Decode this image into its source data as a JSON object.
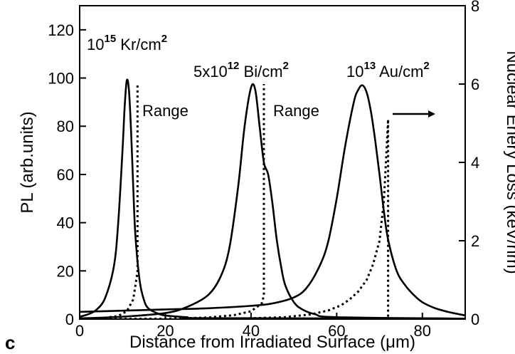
{
  "chart_data": {
    "type": "line",
    "panel_label": "c",
    "xlabel": "Distance from Irradiated Surface (μm)",
    "ylabel_left": "PL (arb.units)",
    "ylabel_right": "Nuclear Enery Loss (keV/nm)",
    "xlim": [
      0,
      90
    ],
    "ylim_left": [
      0,
      130
    ],
    "ylim_right": [
      0,
      8
    ],
    "x_ticks": [
      0,
      20,
      40,
      60,
      80
    ],
    "y_ticks_left": [
      0,
      20,
      40,
      60,
      80,
      100,
      120
    ],
    "y_ticks_right": [
      0,
      2,
      4,
      6,
      8
    ],
    "annotations": {
      "kr": {
        "base": "10",
        "exp": "15",
        "rest": " Kr/cm",
        "sup2": "2"
      },
      "bi": {
        "base": "5x10",
        "exp": "12",
        "rest": " Bi/cm",
        "sup2": "2"
      },
      "au": {
        "base": "10",
        "exp": "13",
        "rest": " Au/cm",
        "sup2": "2"
      },
      "range1": "Range",
      "range2": "Range"
    },
    "series": [
      {
        "style": "solid",
        "axis": "left",
        "x": [
          0,
          2,
          4,
          6,
          8,
          9,
          10,
          10.5,
          11,
          11.5,
          12,
          12.5,
          13,
          14,
          15,
          16,
          18,
          20,
          25,
          30,
          90
        ],
        "y": [
          1,
          2,
          4,
          9,
          22,
          40,
          70,
          88,
          99,
          95,
          78,
          55,
          35,
          16,
          8,
          4.5,
          2.5,
          1.5,
          0.8,
          0.4,
          0.2
        ]
      },
      {
        "style": "solid",
        "axis": "left",
        "x": [
          0,
          10,
          20,
          25,
          30,
          33,
          35,
          37,
          38.5,
          40,
          41,
          42,
          43,
          44,
          45,
          46,
          47,
          48,
          50,
          52,
          55,
          60,
          90
        ],
        "y": [
          0.3,
          1,
          2.5,
          5,
          10,
          18,
          30,
          55,
          80,
          96,
          95,
          80,
          65,
          60,
          48,
          33,
          22,
          14,
          7,
          4,
          2,
          0.8,
          0.2
        ]
      },
      {
        "style": "solid",
        "axis": "left",
        "x": [
          0,
          10,
          20,
          30,
          40,
          45,
          50,
          53,
          56,
          58,
          60,
          62,
          64,
          65,
          66,
          67,
          68,
          69,
          70,
          71,
          72,
          74,
          76,
          78,
          80,
          83,
          86,
          90
        ],
        "y": [
          3,
          3.5,
          4,
          4.5,
          5.5,
          6.5,
          9,
          13,
          22,
          32,
          50,
          72,
          90,
          95,
          97,
          94,
          86,
          74,
          60,
          45,
          33,
          20,
          14,
          10,
          7,
          4.5,
          3,
          1.5
        ]
      },
      {
        "style": "dotted",
        "axis": "right",
        "x": [
          0,
          5,
          9,
          11,
          12.5,
          13.5,
          13.5
        ],
        "y": [
          0,
          0.02,
          0.08,
          0.2,
          0.5,
          1.2,
          6.0
        ]
      },
      {
        "style": "dotted",
        "axis": "right",
        "x": [
          0,
          20,
          30,
          36,
          40,
          42.5,
          43,
          43
        ],
        "y": [
          0,
          0.01,
          0.04,
          0.1,
          0.2,
          0.4,
          0.6,
          6.0
        ]
      },
      {
        "style": "dotted",
        "axis": "right",
        "x": [
          0,
          40,
          48,
          54,
          58,
          61,
          63,
          65,
          67,
          68.5,
          70,
          71,
          71.5,
          72,
          72
        ],
        "y": [
          0,
          0.02,
          0.05,
          0.12,
          0.22,
          0.35,
          0.5,
          0.7,
          1.0,
          1.4,
          2.0,
          3.0,
          4.0,
          5.1,
          0
        ]
      }
    ]
  }
}
